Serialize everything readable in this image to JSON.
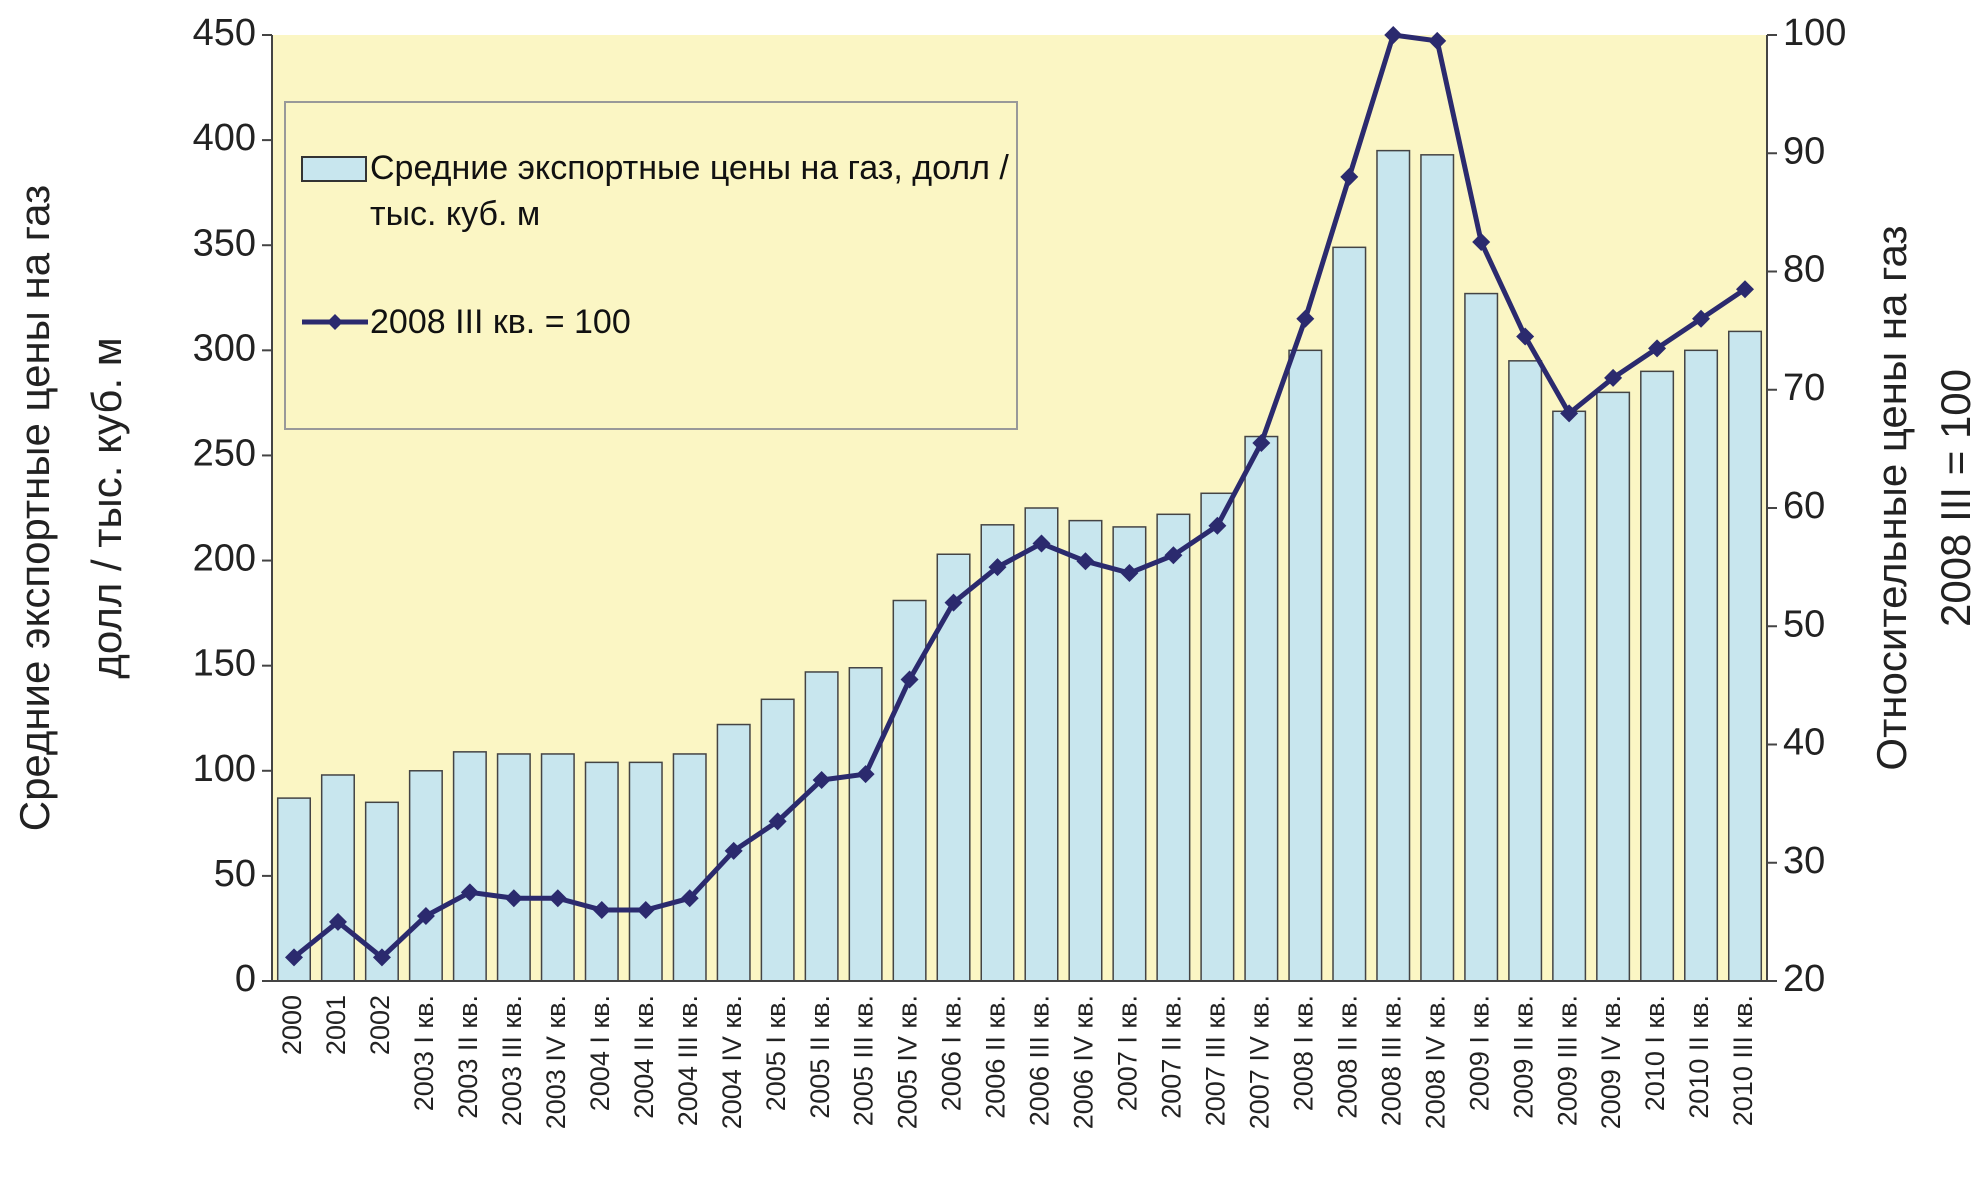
{
  "chart_data": {
    "type": "bar_line",
    "ylabel": [
      "Средние экспортные цены на газ",
      "долл / тыс. куб. м"
    ],
    "y2label": [
      "Относительные цены на газ",
      "2008 III = 100"
    ],
    "categories": [
      "2000",
      "2001",
      "2002",
      "2003 I кв.",
      "2003 II кв.",
      "2003 III кв.",
      "2003 IV кв.",
      "2004 I кв.",
      "2004 II кв.",
      "2004 III кв.",
      "2004 IV кв.",
      "2005 I кв.",
      "2005 II кв.",
      "2005 III кв.",
      "2005 IV кв.",
      "2006 I кв.",
      "2006 II кв.",
      "2006 III кв.",
      "2006 IV кв.",
      "2007 I кв.",
      "2007 II кв.",
      "2007 III кв.",
      "2007 IV кв.",
      "2008 I кв.",
      "2008 II кв.",
      "2008 III кв.",
      "2008 IV кв.",
      "2009 I кв.",
      "2009 II кв.",
      "2009 III кв.",
      "2009 IV кв.",
      "2010 I кв.",
      "2010 II кв.",
      "2010 III кв."
    ],
    "series": [
      {
        "name": "Средние экспортные цены на газ, долл /тыс. куб. м",
        "kind": "bar",
        "color": "#c8e6ee",
        "values": [
          87,
          98,
          85,
          100,
          109,
          108,
          108,
          104,
          104,
          108,
          122,
          134,
          147,
          149,
          181,
          203,
          217,
          225,
          219,
          216,
          222,
          232,
          259,
          300,
          349,
          395,
          393,
          327,
          295,
          271,
          280,
          290,
          300,
          309
        ]
      },
      {
        "name": "2008 III кв. = 100",
        "kind": "line",
        "axis": "y2",
        "color": "#2b2a6e",
        "values": [
          22,
          25,
          22,
          25.5,
          27.5,
          27,
          27,
          26,
          26,
          27,
          31,
          33.5,
          37,
          37.5,
          45.5,
          52,
          55,
          57,
          55.5,
          54.5,
          56,
          58.5,
          65.5,
          76,
          88,
          100,
          99.5,
          82.5,
          74.5,
          68,
          71,
          73.5,
          76,
          78.5
        ]
      }
    ],
    "ylim": [
      0,
      450
    ],
    "yticks": [
      0,
      50,
      100,
      150,
      200,
      250,
      300,
      350,
      400,
      450
    ],
    "y2lim": [
      20,
      100
    ],
    "y2ticks": [
      20,
      30,
      40,
      50,
      60,
      70,
      80,
      90,
      100
    ],
    "plot_background": "#fbf6c4"
  }
}
